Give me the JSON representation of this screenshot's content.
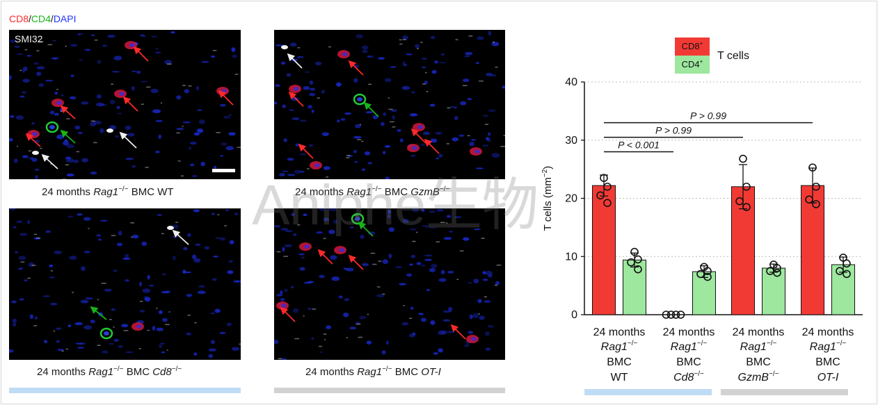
{
  "stain_legend": {
    "cd8": "CD8",
    "sep1": "/",
    "cd4": "CD4",
    "sep2": "/",
    "dapi": "DAPI",
    "cd8_color": "#ff2a2a",
    "cd4_color": "#19b319",
    "dapi_color": "#2233ff"
  },
  "smi_label": "SMI32",
  "panels": [
    {
      "prefix": "24 months ",
      "gene": "Rag1",
      "gene_sup": "−/−",
      "mid": " BMC ",
      "strain": "WT",
      "strain_italic": false,
      "strain_sup": ""
    },
    {
      "prefix": "24 months ",
      "gene": "Rag1",
      "gene_sup": "−/−",
      "mid": " BMC ",
      "strain": "GzmB",
      "strain_italic": true,
      "strain_sup": "−/−"
    },
    {
      "prefix": "24 months ",
      "gene": "Rag1",
      "gene_sup": "−/−",
      "mid": " BMC ",
      "strain": "Cd8",
      "strain_italic": true,
      "strain_sup": "−/−"
    },
    {
      "prefix": "24 months ",
      "gene": "Rag1",
      "gene_sup": "−/−",
      "mid": " BMC ",
      "strain": "OT-I",
      "strain_italic": true,
      "strain_sup": ""
    }
  ],
  "group_colors": {
    "blue": "#bfdcf5",
    "grey": "#d2d2d2"
  },
  "watermark": "Aniphe生物",
  "chart_data": {
    "type": "bar",
    "legend": {
      "title": "T cells",
      "entries": [
        {
          "label": "CD8",
          "sup": "+",
          "color": "#f23a35"
        },
        {
          "label": "CD4",
          "sup": "+",
          "color": "#9de79f"
        }
      ],
      "placement": "top"
    },
    "ylabel": "T cells (mm",
    "ylabel_sup": "−2",
    "ylabel_close": ")",
    "ylim": [
      0,
      40
    ],
    "yticks": [
      0,
      10,
      20,
      30,
      40
    ],
    "grid": "dotted",
    "categories": [
      {
        "line1": "24 months",
        "line2": "Rag1",
        "line2_sup": "−/−",
        "line3": "BMC",
        "line4": "WT",
        "line4_italic": false,
        "line4_sup": ""
      },
      {
        "line1": "24 months",
        "line2": "Rag1",
        "line2_sup": "−/−",
        "line3": "BMC",
        "line4": "Cd8",
        "line4_italic": true,
        "line4_sup": "−/−"
      },
      {
        "line1": "24 months",
        "line2": "Rag1",
        "line2_sup": "−/−",
        "line3": "BMC",
        "line4": "GzmB",
        "line4_italic": true,
        "line4_sup": "−/−"
      },
      {
        "line1": "24 months",
        "line2": "Rag1",
        "line2_sup": "−/−",
        "line3": "BMC",
        "line4": "OT-I",
        "line4_italic": true,
        "line4_sup": ""
      }
    ],
    "series": [
      {
        "name": "CD8+",
        "color": "#f23a35",
        "values": [
          22.2,
          0.0,
          22.0,
          22.2
        ],
        "errors": [
          1.8,
          0.0,
          3.8,
          3.0
        ],
        "points": [
          [
            23.5,
            22.0,
            20.5,
            19.2
          ],
          [
            0,
            0,
            0,
            0
          ],
          [
            26.8,
            22.0,
            19.5,
            18.5
          ],
          [
            25.3,
            22.0,
            19.8,
            19.0
          ]
        ]
      },
      {
        "name": "CD4+",
        "color": "#9de79f",
        "values": [
          9.4,
          7.4,
          8.0,
          8.6
        ],
        "errors": [
          1.2,
          1.0,
          0.7,
          1.3
        ],
        "points": [
          [
            10.8,
            9.5,
            9.0,
            7.8
          ],
          [
            8.2,
            7.5,
            7.0,
            6.5
          ],
          [
            8.6,
            8.0,
            7.5,
            7.2
          ],
          [
            9.8,
            8.8,
            7.5,
            7.0
          ]
        ]
      }
    ],
    "comparisons": [
      {
        "text": "P < 0.001",
        "from": 0,
        "to": 1,
        "y": 28.0
      },
      {
        "text": "P > 0.99",
        "from": 0,
        "to": 2,
        "y": 30.5
      },
      {
        "text": "P > 0.99",
        "from": 0,
        "to": 3,
        "y": 33.0
      }
    ],
    "group_bars": [
      "blue",
      "grey"
    ]
  }
}
